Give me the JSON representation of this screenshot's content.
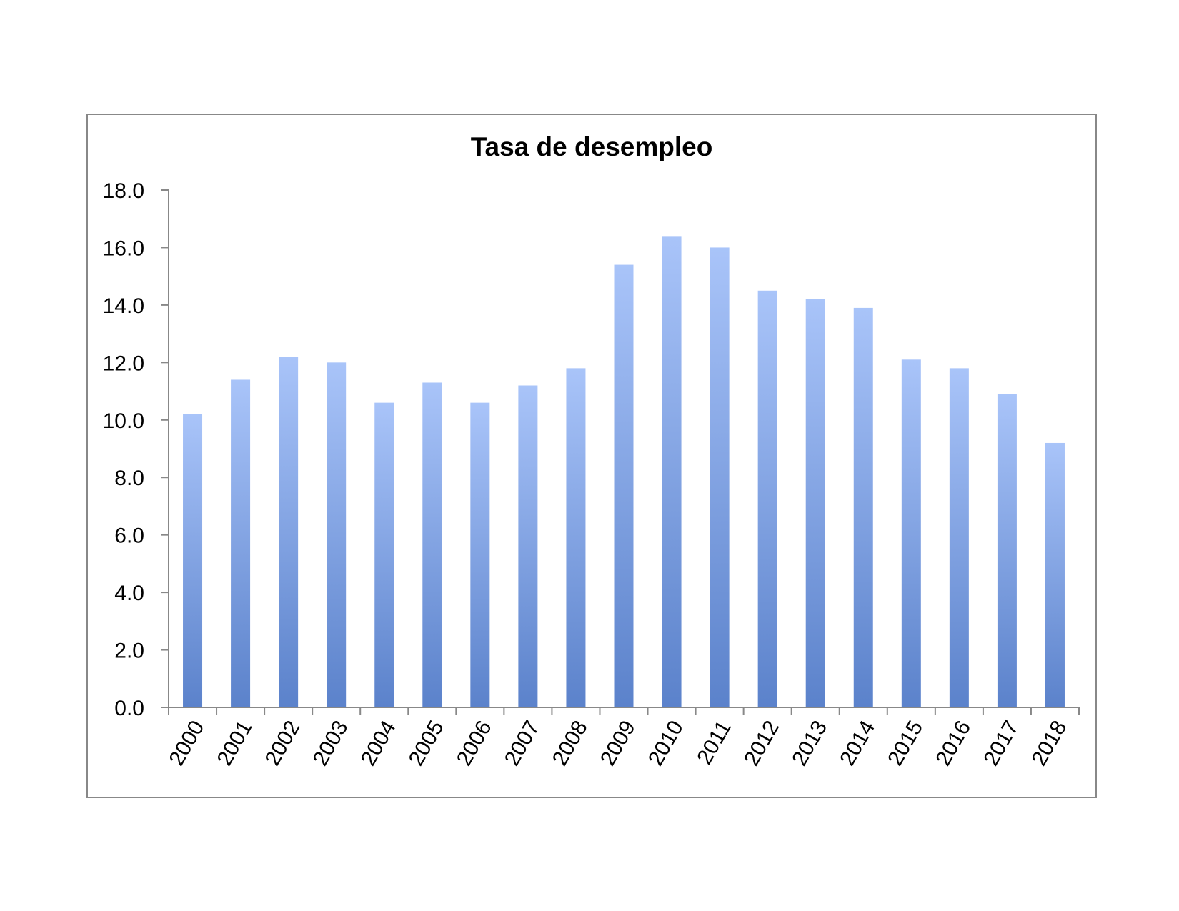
{
  "chart_data": {
    "type": "bar",
    "title": "Tasa de desempleo",
    "xlabel": "",
    "ylabel": "",
    "categories": [
      "2000",
      "2001",
      "2002",
      "2003",
      "2004",
      "2005",
      "2006",
      "2007",
      "2008",
      "2009",
      "2010",
      "2011",
      "2012",
      "2013",
      "2014",
      "2015",
      "2016",
      "2017",
      "2018"
    ],
    "values": [
      10.2,
      11.4,
      12.2,
      12.0,
      10.6,
      11.3,
      10.6,
      11.2,
      11.8,
      15.4,
      16.4,
      16.0,
      14.5,
      14.2,
      13.9,
      12.1,
      11.8,
      10.9,
      9.2
    ],
    "ylim": [
      0,
      18
    ],
    "yticks": [
      "0.0",
      "2.0",
      "4.0",
      "6.0",
      "8.0",
      "10.0",
      "12.0",
      "14.0",
      "16.0",
      "18.0"
    ],
    "grid": false,
    "legend": "none",
    "colors": {
      "bar_top": "#A9C4F9",
      "bar_bottom": "#5B82CB",
      "axis": "#888888",
      "border": "#888888"
    }
  }
}
